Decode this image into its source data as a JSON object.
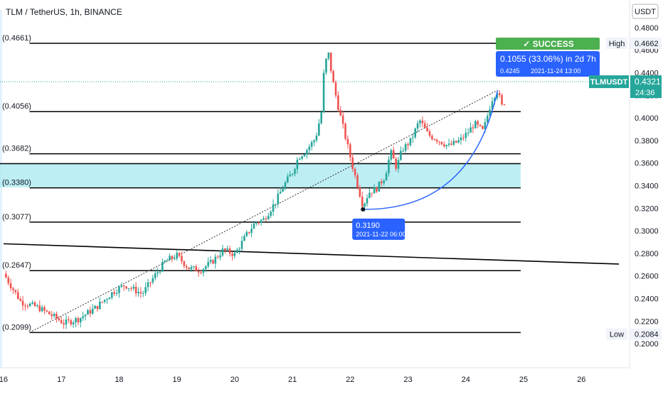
{
  "header": {
    "title": "TLM / TetherUS, 1h, BINANCE"
  },
  "currency": "USDT",
  "colors": {
    "up": "#26a69a",
    "down": "#ef5350",
    "zone": "#b2ebf2",
    "line": "#000000",
    "measure": "#2962ff",
    "success": "#4caf50",
    "price_tag": "#26a69a"
  },
  "chart_data": {
    "type": "candlestick",
    "symbol": "TLMUSDT",
    "y_range": [
      0.195,
      0.485
    ],
    "x_range": [
      16.0,
      26.65
    ],
    "y_axis_ticks": [
      "0.4800",
      "0.4600",
      "0.4400",
      "0.4200",
      "0.4000",
      "0.3800",
      "0.3600",
      "0.3400",
      "0.3200",
      "0.3000",
      "0.2800",
      "0.2600",
      "0.2400",
      "0.2200",
      "0.2000"
    ],
    "x_axis_ticks": [
      "16",
      "17",
      "18",
      "19",
      "20",
      "21",
      "22",
      "23",
      "24",
      "25",
      "26"
    ],
    "fib_levels": [
      {
        "label": "(0.4661)",
        "value": 0.4661
      },
      {
        "label": "(0.4056)",
        "value": 0.4056
      },
      {
        "label": "(0.3682)",
        "value": 0.3682
      },
      {
        "label": "(0.3380)",
        "value": 0.338
      },
      {
        "label": "(0.3077)",
        "value": 0.3077
      },
      {
        "label": "(0.2647)",
        "value": 0.2647
      },
      {
        "label": "(0.2099)",
        "value": 0.2099
      }
    ],
    "zone": {
      "top": 0.3595,
      "bottom": 0.3385
    },
    "high": {
      "label": "High",
      "value": "0.4662"
    },
    "low": {
      "label": "Low",
      "value": "0.2084"
    },
    "last_price": {
      "symbol": "TLMUSDT",
      "value": "0.4321",
      "countdown": "24:36"
    },
    "measurement": {
      "text": "0.1055 (33.06%) in 2d 7h",
      "end_value": "0.4245",
      "end_date": "2021-11-24  13:00",
      "status": "SUCCESS"
    },
    "low_point": {
      "value": "0.3190",
      "date": "2021-11-22 06:00"
    },
    "anchors": [
      [
        16.0,
        0.262
      ],
      [
        16.3,
        0.237
      ],
      [
        16.6,
        0.232
      ],
      [
        16.9,
        0.223
      ],
      [
        17.05,
        0.218
      ],
      [
        17.3,
        0.222
      ],
      [
        17.6,
        0.232
      ],
      [
        17.9,
        0.246
      ],
      [
        18.1,
        0.252
      ],
      [
        18.4,
        0.244
      ],
      [
        18.6,
        0.259
      ],
      [
        18.8,
        0.273
      ],
      [
        19.0,
        0.278
      ],
      [
        19.2,
        0.267
      ],
      [
        19.4,
        0.265
      ],
      [
        19.6,
        0.272
      ],
      [
        19.8,
        0.283
      ],
      [
        20.0,
        0.279
      ],
      [
        20.2,
        0.296
      ],
      [
        20.35,
        0.307
      ],
      [
        20.5,
        0.31
      ],
      [
        20.7,
        0.325
      ],
      [
        20.85,
        0.34
      ],
      [
        21.0,
        0.352
      ],
      [
        21.1,
        0.365
      ],
      [
        21.25,
        0.372
      ],
      [
        21.4,
        0.382
      ],
      [
        21.5,
        0.405
      ],
      [
        21.55,
        0.445
      ],
      [
        21.62,
        0.458
      ],
      [
        21.7,
        0.432
      ],
      [
        21.8,
        0.408
      ],
      [
        21.95,
        0.376
      ],
      [
        22.05,
        0.355
      ],
      [
        22.15,
        0.336
      ],
      [
        22.22,
        0.322
      ],
      [
        22.32,
        0.334
      ],
      [
        22.45,
        0.337
      ],
      [
        22.6,
        0.348
      ],
      [
        22.7,
        0.37
      ],
      [
        22.8,
        0.356
      ],
      [
        22.9,
        0.372
      ],
      [
        23.05,
        0.38
      ],
      [
        23.2,
        0.398
      ],
      [
        23.35,
        0.385
      ],
      [
        23.5,
        0.381
      ],
      [
        23.7,
        0.375
      ],
      [
        23.9,
        0.38
      ],
      [
        24.05,
        0.388
      ],
      [
        24.15,
        0.395
      ],
      [
        24.3,
        0.388
      ],
      [
        24.45,
        0.416
      ],
      [
        24.55,
        0.425
      ],
      [
        24.62,
        0.41
      ],
      [
        24.7,
        0.417
      ]
    ],
    "diagonal_line": [
      [
        16.45,
        0.2099
      ],
      [
        24.55,
        0.4245
      ]
    ],
    "trend_line": [
      [
        16.0,
        0.2885
      ],
      [
        26.65,
        0.2705
      ]
    ]
  }
}
